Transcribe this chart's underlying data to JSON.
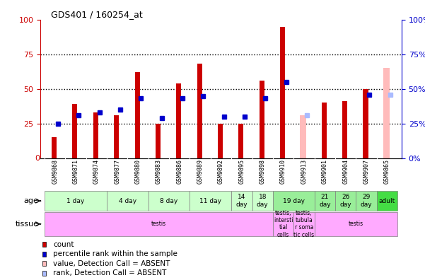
{
  "title": "GDS401 / 160254_at",
  "samples": [
    "GSM9868",
    "GSM9871",
    "GSM9874",
    "GSM9877",
    "GSM9880",
    "GSM9883",
    "GSM9886",
    "GSM9889",
    "GSM9892",
    "GSM9895",
    "GSM9898",
    "GSM9910",
    "GSM9913",
    "GSM9901",
    "GSM9904",
    "GSM9907",
    "GSM9865"
  ],
  "red_values": [
    15,
    39,
    33,
    31,
    62,
    25,
    54,
    68,
    25,
    25,
    56,
    95,
    0,
    40,
    41,
    50,
    0
  ],
  "blue_values": [
    25,
    31,
    33,
    35,
    43,
    29,
    43,
    45,
    30,
    30,
    43,
    55,
    31,
    0,
    0,
    46,
    0
  ],
  "absent_red": [
    0,
    0,
    0,
    0,
    0,
    0,
    0,
    0,
    0,
    0,
    0,
    0,
    31,
    0,
    0,
    0,
    65
  ],
  "absent_blue": [
    0,
    0,
    0,
    0,
    0,
    0,
    0,
    0,
    0,
    0,
    0,
    0,
    31,
    0,
    0,
    0,
    46
  ],
  "is_absent": [
    false,
    false,
    false,
    false,
    false,
    false,
    false,
    false,
    false,
    false,
    false,
    false,
    true,
    false,
    false,
    false,
    true
  ],
  "ylim": [
    0,
    100
  ],
  "dotted_lines": [
    25,
    50,
    75
  ],
  "age_groups": [
    {
      "label": "1 day",
      "cols": [
        0,
        1,
        2
      ],
      "color": "#ccffcc"
    },
    {
      "label": "4 day",
      "cols": [
        3,
        4
      ],
      "color": "#ccffcc"
    },
    {
      "label": "8 day",
      "cols": [
        5,
        6
      ],
      "color": "#ccffcc"
    },
    {
      "label": "11 day",
      "cols": [
        7,
        8
      ],
      "color": "#ccffcc"
    },
    {
      "label": "14\nday",
      "cols": [
        9
      ],
      "color": "#ccffcc"
    },
    {
      "label": "18\nday",
      "cols": [
        10
      ],
      "color": "#ccffcc"
    },
    {
      "label": "19 day",
      "cols": [
        11,
        12
      ],
      "color": "#99ee99"
    },
    {
      "label": "21\nday",
      "cols": [
        13
      ],
      "color": "#99ee99"
    },
    {
      "label": "26\nday",
      "cols": [
        14
      ],
      "color": "#99ee99"
    },
    {
      "label": "29\nday",
      "cols": [
        15
      ],
      "color": "#99ee99"
    },
    {
      "label": "adult",
      "cols": [
        16
      ],
      "color": "#44dd44"
    }
  ],
  "tissue_groups": [
    {
      "label": "testis",
      "cols": [
        0,
        1,
        2,
        3,
        4,
        5,
        6,
        7,
        8,
        9,
        10
      ],
      "color": "#ffaaff"
    },
    {
      "label": "testis,\nintersti\ntial\ncells",
      "cols": [
        11
      ],
      "color": "#ffaaff"
    },
    {
      "label": "testis,\ntubula\nr soma\ntic cells",
      "cols": [
        12
      ],
      "color": "#ffaaff"
    },
    {
      "label": "testis",
      "cols": [
        13,
        14,
        15,
        16
      ],
      "color": "#ffaaff"
    }
  ],
  "bar_color": "#cc0000",
  "blue_color": "#0000cc",
  "absent_bar_color": "#ffbbbb",
  "absent_blue_color": "#aabbff",
  "bg_color": "#ffffff",
  "plot_bg_color": "#ffffff",
  "tick_label_bg": "#cccccc",
  "left_axis_color": "#cc0000",
  "right_axis_color": "#0000cc"
}
